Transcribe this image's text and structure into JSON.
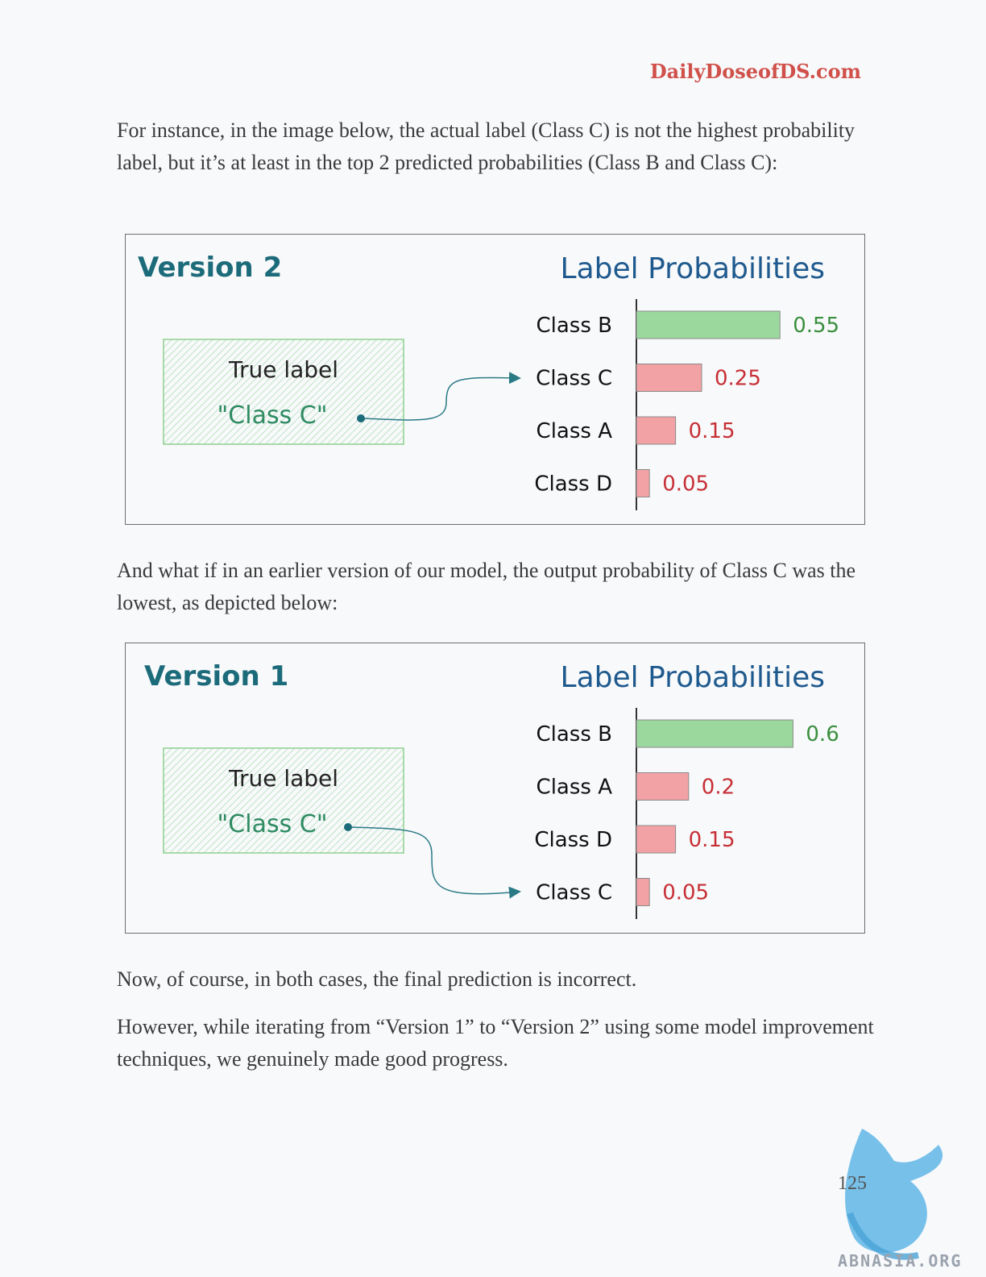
{
  "header": {
    "brand": "DailyDoseofDS.com"
  },
  "paragraphs": [
    "For instance, in the image below, the actual label (Class C) is not the highest probability label, but it’s at least in the top 2 predicted probabilities (Class B and Class C):",
    "And what if in an earlier version of our model, the output probability of Class C was the lowest, as depicted below:",
    "Now, of course, in both cases, the final prediction is incorrect.",
    "However, while iterating from “Version 1” to “Version 2” using some model improvement techniques, we genuinely made good progress."
  ],
  "figures": [
    {
      "version_title": "Version 2",
      "chart_title": "Label Probabilities",
      "true_label_heading": "True label",
      "true_label_value": "\"Class C\"",
      "highlight_index": 1
    },
    {
      "version_title": "Version 1",
      "chart_title": "Label Probabilities",
      "true_label_heading": "True label",
      "true_label_value": "\"Class C\"",
      "highlight_index": 3
    }
  ],
  "chart_data": [
    {
      "type": "bar",
      "orientation": "horizontal",
      "title": "Label Probabilities",
      "categories": [
        "Class B",
        "Class C",
        "Class A",
        "Class D"
      ],
      "values": [
        0.55,
        0.25,
        0.15,
        0.05
      ],
      "value_labels": [
        "0.55",
        "0.25",
        "0.15",
        "0.05"
      ],
      "colors": [
        "#9ad89e",
        "#f2a2a4",
        "#f2a2a4",
        "#f2a2a4"
      ],
      "label_colors": [
        "#3a8f3e",
        "#c62f35",
        "#c62f35",
        "#c62f35"
      ]
    },
    {
      "type": "bar",
      "orientation": "horizontal",
      "title": "Label Probabilities",
      "categories": [
        "Class B",
        "Class A",
        "Class D",
        "Class C"
      ],
      "values": [
        0.6,
        0.2,
        0.15,
        0.05
      ],
      "value_labels": [
        "0.6",
        "0.2",
        "0.15",
        "0.05"
      ],
      "colors": [
        "#9ad89e",
        "#f2a2a4",
        "#f2a2a4",
        "#f2a2a4"
      ],
      "label_colors": [
        "#3a8f3e",
        "#c62f35",
        "#c62f35",
        "#c62f35"
      ]
    }
  ],
  "colors": {
    "brand": "#d0504a",
    "version_title": "#1c6b7a",
    "chart_title": "#1f5a8e",
    "true_label_value": "#2e8b62",
    "arrow": "#2a7a86"
  },
  "footer": {
    "page_number": "125",
    "watermark": "ABNASIA.ORG",
    "watermark_icon": "griffin-logo-icon"
  }
}
